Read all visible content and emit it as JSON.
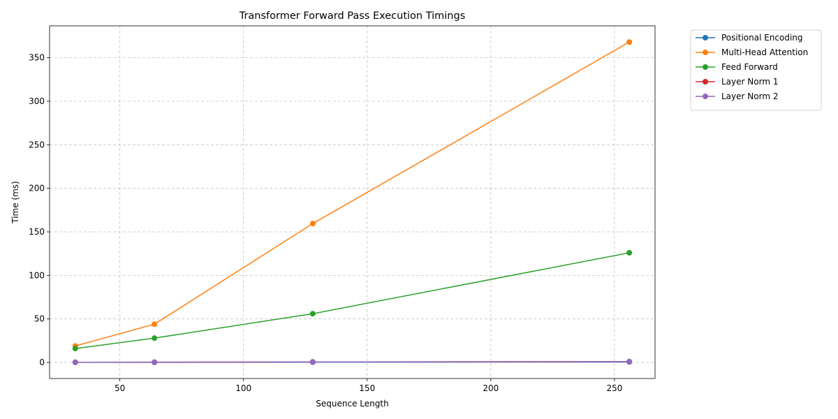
{
  "chart_data": {
    "type": "line",
    "title": "Transformer Forward Pass Execution Timings",
    "xlabel": "Sequence Length",
    "ylabel": "Time (ms)",
    "x": [
      32,
      64,
      128,
      256
    ],
    "xlim": [
      21.6,
      266.4
    ],
    "ylim": [
      -18.4,
      386.6
    ],
    "xticks": [
      50,
      100,
      150,
      200,
      250
    ],
    "yticks": [
      0,
      50,
      100,
      150,
      200,
      250,
      300,
      350
    ],
    "grid": true,
    "legend_position": "outside-top-right",
    "series": [
      {
        "name": "Positional Encoding",
        "color": "#1f77b4",
        "values": [
          0.1,
          0.15,
          0.3,
          0.6
        ]
      },
      {
        "name": "Multi-Head Attention",
        "color": "#ff7f0e",
        "values": [
          19,
          44,
          159.5,
          368
        ]
      },
      {
        "name": "Feed Forward",
        "color": "#2ca02c",
        "values": [
          16,
          28,
          56,
          126
        ]
      },
      {
        "name": "Layer Norm 1",
        "color": "#d62728",
        "values": [
          0.2,
          0.3,
          0.6,
          1.0
        ]
      },
      {
        "name": "Layer Norm 2",
        "color": "#9467bd",
        "values": [
          0.2,
          0.3,
          0.6,
          1.0
        ]
      }
    ]
  }
}
